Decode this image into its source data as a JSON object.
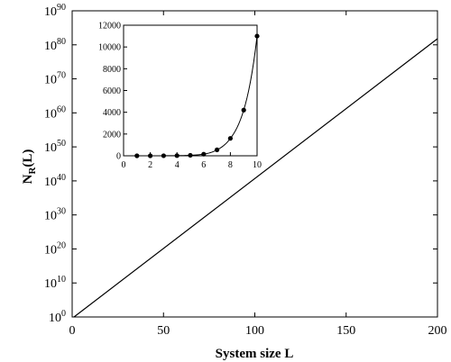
{
  "chart_data": [
    {
      "type": "line",
      "xlabel": "System size L",
      "ylabel_main": "N",
      "ylabel_sub": "R",
      "ylabel_tail": "(L)",
      "xlim": [
        0,
        200
      ],
      "ylim_log10": [
        0,
        90
      ],
      "yscale": "log",
      "x_ticks": [
        "0",
        "50",
        "100",
        "150",
        "200"
      ],
      "y_tick_exponents": [
        "0",
        "10",
        "20",
        "30",
        "40",
        "50",
        "60",
        "70",
        "80",
        "90"
      ],
      "y_tick_base": "10",
      "series": [
        {
          "x": [
            1,
            200
          ],
          "log10_y": [
            0,
            81.8
          ]
        }
      ],
      "grid": false,
      "legend": "none"
    },
    {
      "type": "scatter",
      "role": "inset",
      "xlim": [
        0,
        10
      ],
      "ylim": [
        0,
        12000
      ],
      "x_ticks": [
        "0",
        "2",
        "4",
        "6",
        "8",
        "10"
      ],
      "y_ticks": [
        "0",
        "2000",
        "4000",
        "6000",
        "8000",
        "10000",
        "12000"
      ],
      "series": [
        {
          "x": [
            1,
            2,
            3,
            4,
            5,
            6,
            7,
            8,
            9,
            10
          ],
          "y": [
            1,
            2,
            6,
            15,
            45,
            150,
            550,
            1600,
            4200,
            11000
          ]
        }
      ],
      "fit_curve": true,
      "grid": false,
      "legend": "none"
    }
  ]
}
